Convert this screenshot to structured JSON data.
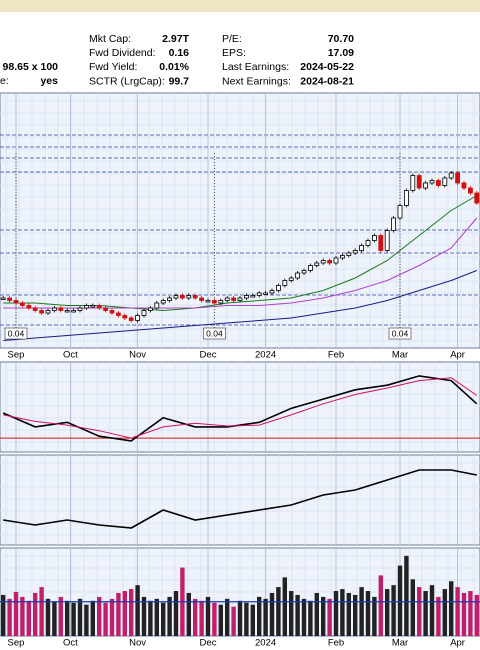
{
  "header": {
    "left": [
      {
        "text": "98.65 x 100"
      },
      {
        "label": "e:",
        "text": "yes"
      }
    ],
    "stats": [
      [
        "Mkt Cap:",
        "2.97T",
        "P/E:",
        "70.70"
      ],
      [
        "Fwd Dividend:",
        "0.16",
        "EPS:",
        "17.09"
      ],
      [
        "Fwd Yield:",
        "0.01%",
        "Last Earnings:",
        "2024-05-22"
      ],
      [
        "SCTR (LrgCap):",
        "99.7",
        "Next Earnings:",
        "2024-08-21"
      ]
    ]
  },
  "chart_data": [
    {
      "type": "candlestick",
      "up_color": "#000000",
      "down_color": "#d01010",
      "xlim": [
        -0.5,
        74.5
      ],
      "ylim": [
        27,
        129
      ],
      "xticks": [
        {
          "value": 2,
          "label": "Sep"
        },
        {
          "value": 10.5,
          "label": "Oct"
        },
        {
          "value": 21,
          "label": "Nov"
        },
        {
          "value": 32,
          "label": "Dec"
        },
        {
          "value": 41,
          "label": "2024"
        },
        {
          "value": 52,
          "label": "Feb"
        },
        {
          "value": 62,
          "label": "Mar"
        },
        {
          "value": 71,
          "label": "Apr"
        }
      ],
      "closes": [
        47,
        46,
        45,
        44,
        43,
        42,
        41,
        42,
        43,
        42,
        42,
        42,
        43,
        44,
        44,
        43,
        42,
        41,
        40,
        39,
        38,
        40,
        42,
        43,
        45,
        46,
        47,
        48,
        47,
        48,
        47,
        46,
        46,
        45,
        46,
        47,
        46,
        47,
        48,
        48,
        49,
        49,
        50,
        52,
        54,
        55,
        57,
        58,
        60,
        61,
        62,
        61,
        63,
        64,
        65,
        66,
        68,
        70,
        72,
        66,
        74,
        79,
        84,
        90,
        96,
        91,
        93,
        94,
        92,
        95,
        97,
        93,
        91,
        89,
        85
      ],
      "overlays": [
        {
          "color": "#1a7a1a",
          "x": [
            0,
            5,
            10,
            15,
            20,
            25,
            30,
            35,
            40,
            45,
            50,
            55,
            60,
            65,
            70,
            74
          ],
          "values": [
            45,
            45,
            44,
            44,
            43,
            42,
            43,
            45,
            46,
            47,
            50,
            55,
            62,
            72,
            82,
            88
          ]
        },
        {
          "color": "#b040c8",
          "x": [
            0,
            5,
            10,
            15,
            20,
            25,
            30,
            35,
            40,
            45,
            50,
            55,
            60,
            65,
            70,
            74
          ],
          "values": [
            43,
            43,
            43,
            43,
            43,
            43,
            43,
            44,
            44,
            45,
            47,
            50,
            54,
            60,
            67,
            79
          ]
        },
        {
          "color": "#1a1a80",
          "x": [
            0,
            5,
            10,
            15,
            20,
            25,
            30,
            35,
            40,
            45,
            50,
            55,
            60,
            65,
            70,
            74
          ],
          "values": [
            30,
            31,
            32,
            33,
            34,
            35,
            36,
            37,
            38,
            39,
            41,
            43,
            46,
            50,
            54,
            58
          ]
        }
      ],
      "dividends": {
        "x": [
          2,
          33,
          62
        ],
        "values": [
          0.04,
          0.04,
          0.04
        ]
      }
    },
    {
      "type": "line",
      "xlim": [
        -0.5,
        74.5
      ],
      "ylim": [
        -1.5,
        8.2
      ],
      "zero_color": "#d01010",
      "series": [
        {
          "color": "#000000",
          "x": [
            0,
            5,
            10,
            15,
            20,
            25,
            30,
            35,
            40,
            45,
            50,
            55,
            60,
            65,
            70,
            74
          ],
          "values": [
            2.7,
            1.2,
            1.7,
            0.2,
            -0.3,
            2.2,
            1.2,
            1.2,
            1.7,
            3.2,
            4.2,
            5.2,
            5.7,
            6.7,
            6.2,
            3.7
          ]
        },
        {
          "color": "#d01060",
          "x": [
            0,
            5,
            10,
            15,
            20,
            25,
            30,
            35,
            40,
            45,
            50,
            55,
            60,
            65,
            70,
            74
          ],
          "values": [
            2.5,
            1.8,
            1.4,
            0.8,
            0.0,
            1.2,
            1.6,
            1.3,
            1.4,
            2.5,
            3.7,
            4.7,
            5.4,
            6.2,
            6.5,
            4.6
          ]
        }
      ]
    },
    {
      "type": "line",
      "xlim": [
        -0.5,
        74.5
      ],
      "ylim": [
        0,
        90
      ],
      "series": [
        {
          "color": "#000000",
          "x": [
            0,
            5,
            10,
            15,
            20,
            25,
            30,
            35,
            40,
            45,
            50,
            55,
            60,
            65,
            70,
            74
          ],
          "values": [
            25,
            20,
            25,
            20,
            17,
            35,
            25,
            30,
            35,
            40,
            50,
            55,
            65,
            75,
            75,
            70
          ]
        }
      ]
    },
    {
      "type": "volume",
      "xlim": [
        -0.5,
        74.5
      ],
      "ylim": [
        0,
        90
      ],
      "average": 35,
      "average_color": "#1a3ab0",
      "xticks": [
        {
          "value": 2,
          "label": "Sep"
        },
        {
          "value": 10.5,
          "label": "Oct"
        },
        {
          "value": 21,
          "label": "Nov"
        },
        {
          "value": 32,
          "label": "Dec"
        },
        {
          "value": 41,
          "label": "2024"
        },
        {
          "value": 52,
          "label": "Feb"
        },
        {
          "value": 62,
          "label": "Mar"
        },
        {
          "value": 71,
          "label": "Apr"
        }
      ],
      "values": [
        42,
        38,
        45,
        40,
        36,
        44,
        50,
        38,
        35,
        40,
        36,
        34,
        38,
        32,
        36,
        40,
        34,
        38,
        44,
        46,
        48,
        52,
        40,
        36,
        38,
        34,
        40,
        46,
        70,
        44,
        38,
        36,
        40,
        34,
        32,
        38,
        30,
        36,
        34,
        32,
        40,
        38,
        44,
        50,
        60,
        46,
        42,
        38,
        36,
        44,
        40,
        38,
        46,
        48,
        44,
        42,
        50,
        46,
        40,
        62,
        48,
        52,
        72,
        82,
        58,
        50,
        46,
        52,
        40,
        48,
        56,
        50,
        44,
        46,
        42
      ]
    }
  ]
}
